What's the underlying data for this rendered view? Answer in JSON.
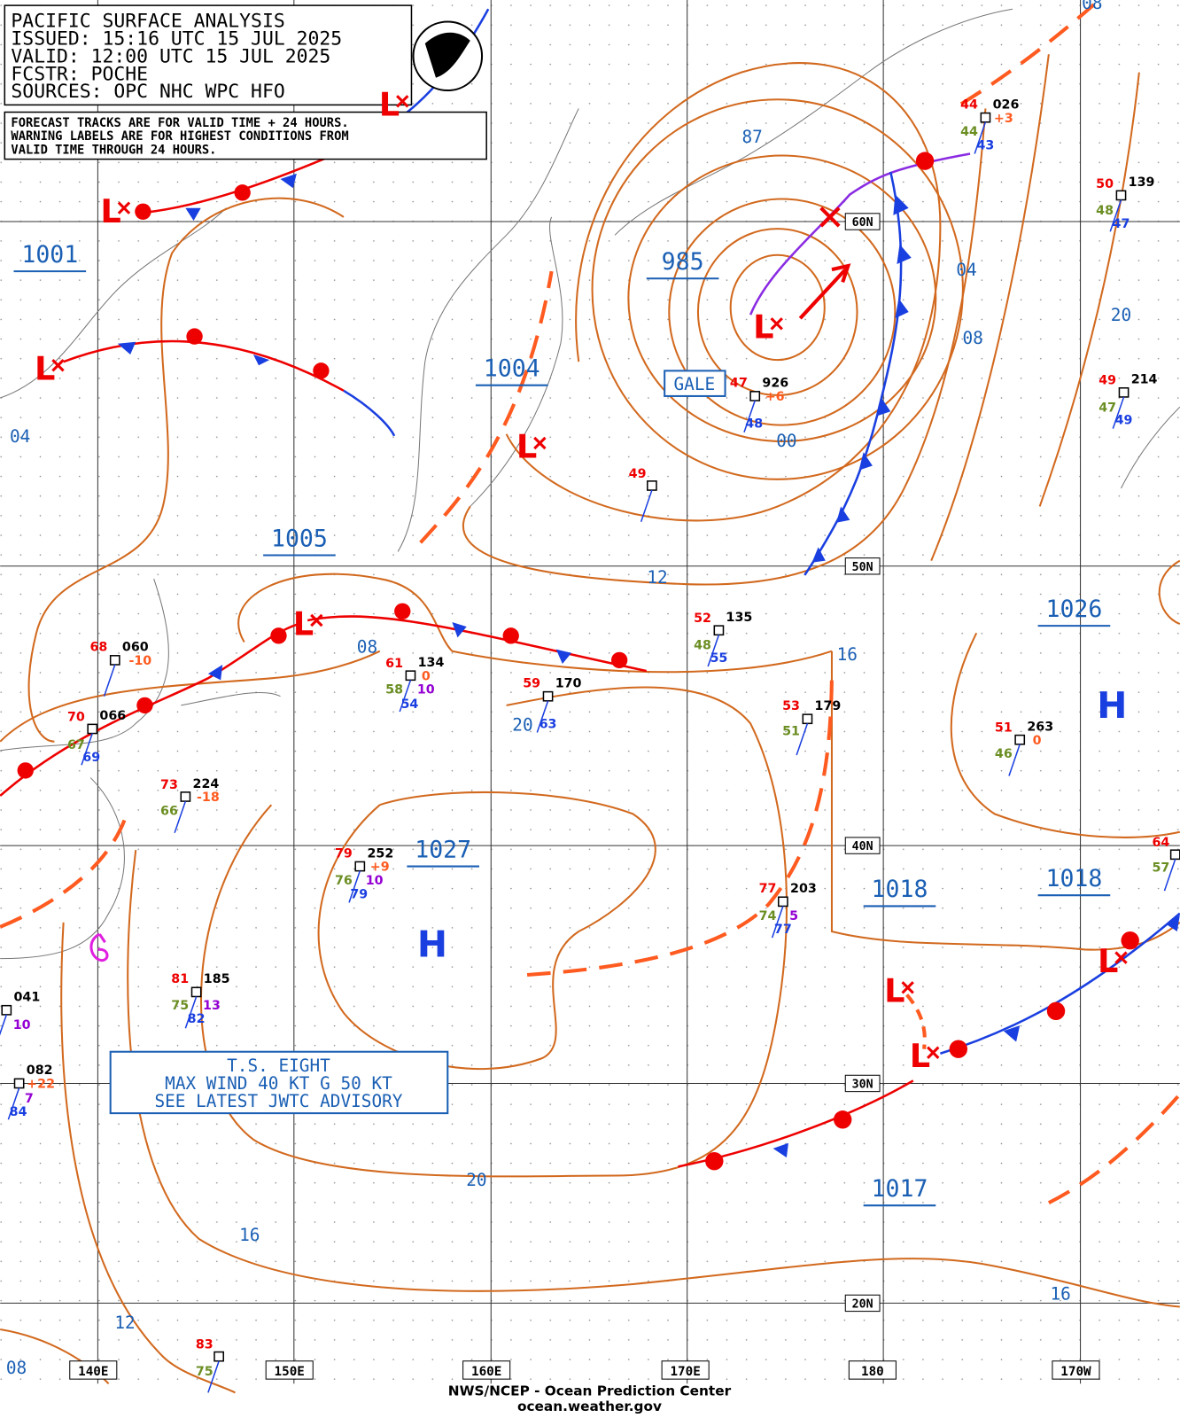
{
  "header": {
    "lines": [
      "PACIFIC SURFACE ANALYSIS",
      "ISSUED:  15:16 UTC 15 JUL 2025",
      "VALID:   12:00 UTC 15 JUL 2025",
      "FCSTR:   POCHE",
      "SOURCES: OPC NHC WPC HFO"
    ]
  },
  "notice": {
    "lines": [
      "FORECAST TRACKS ARE FOR VALID TIME + 24 HOURS.",
      "WARNING LABELS ARE FOR HIGHEST CONDITIONS FROM",
      "VALID TIME THROUGH 24 HOURS."
    ]
  },
  "pressure_centers": [
    "1001",
    "985",
    "1004",
    "1005",
    "1026",
    "1027",
    "1018",
    "1018",
    "1017"
  ],
  "highs": [
    "H",
    "H"
  ],
  "lows": [
    "L",
    "L",
    "L",
    "L",
    "L",
    "L",
    "L",
    "L",
    "L"
  ],
  "isobar_labels": [
    "08",
    "04",
    "87",
    "04",
    "20",
    "08",
    "00",
    "12",
    "16",
    "08",
    "20",
    "20",
    "16",
    "12",
    "16",
    "08"
  ],
  "latitudes": [
    "60N",
    "50N",
    "40N",
    "30N",
    "20N"
  ],
  "longitudes": [
    "140E",
    "150E",
    "160E",
    "170E",
    "180",
    "170W"
  ],
  "gale": "GALE",
  "storm_box": [
    "T.S. EIGHT",
    "MAX WIND 40 KT G 50 KT",
    "SEE LATEST JWTC ADVISORY"
  ],
  "stations": [
    {
      "id": "026",
      "values": [
        "44",
        "44",
        "43",
        "+3"
      ]
    },
    {
      "id": "139",
      "values": [
        "50",
        "48",
        "47"
      ]
    },
    {
      "id": "926",
      "values": [
        "47",
        "48",
        "+6"
      ]
    },
    {
      "id": "214",
      "values": [
        "49",
        "47",
        "49"
      ]
    },
    {
      "id": "135",
      "values": [
        "52",
        "48",
        "55"
      ]
    },
    {
      "id": "060",
      "values": [
        "68",
        "-10"
      ]
    },
    {
      "id": "134",
      "values": [
        "61",
        "58",
        "54",
        "10",
        "0"
      ]
    },
    {
      "id": "170",
      "values": [
        "59",
        "63"
      ]
    },
    {
      "id": "179",
      "values": [
        "53",
        "51"
      ]
    },
    {
      "id": "263",
      "values": [
        "51",
        "46",
        "0"
      ]
    },
    {
      "id": "066",
      "values": [
        "70",
        "67",
        "69"
      ]
    },
    {
      "id": "224",
      "values": [
        "73",
        "66",
        "-18"
      ]
    },
    {
      "id": "252",
      "values": [
        "79",
        "76",
        "79",
        "10",
        "+9"
      ]
    },
    {
      "id": "203",
      "values": [
        "77",
        "74",
        "77",
        "5"
      ]
    },
    {
      "id": "185",
      "values": [
        "81",
        "75",
        "82",
        "13"
      ]
    },
    {
      "id": "041",
      "values": [
        "10"
      ]
    },
    {
      "id": "082",
      "values": [
        "+22",
        "7",
        "84"
      ]
    }
  ],
  "station_plots": [
    {
      "values": [
        "49"
      ]
    },
    {
      "values": [
        "64",
        "57"
      ]
    },
    {
      "values": [
        "83",
        "75"
      ]
    }
  ],
  "footer": [
    "NWS/NCEP - Ocean Prediction Center",
    "ocean.weather.gov"
  ]
}
